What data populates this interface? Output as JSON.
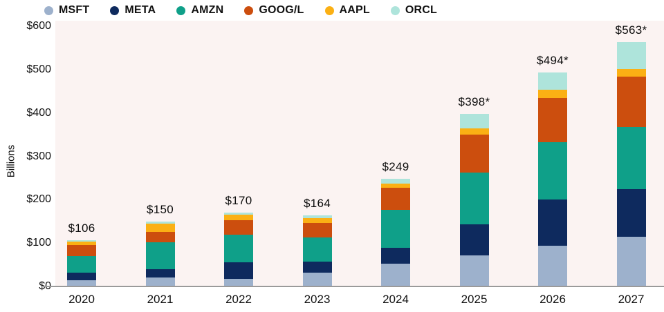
{
  "chart_data": {
    "type": "bar",
    "stacked": true,
    "ylabel": "Billions",
    "ylim": [
      0,
      600
    ],
    "grid": false,
    "legend_position": "top",
    "categories": [
      "2020",
      "2021",
      "2022",
      "2023",
      "2024",
      "2025",
      "2026",
      "2027"
    ],
    "total_labels": [
      "$106",
      "$150",
      "$170",
      "$164",
      "$249",
      "$398*",
      "$494*",
      "$563*"
    ],
    "totals": [
      106,
      150,
      170,
      164,
      249,
      398,
      494,
      563
    ],
    "y_ticks": [
      {
        "label": "$600",
        "value": 600
      },
      {
        "label": "$500",
        "value": 500
      },
      {
        "label": "$400",
        "value": 400
      },
      {
        "label": "$300",
        "value": 300
      },
      {
        "label": "$200",
        "value": 200
      },
      {
        "label": "$100",
        "value": 100
      },
      {
        "label": "$0",
        "value": 0
      }
    ],
    "series": [
      {
        "name": "MSFT",
        "color": "#9db1cc",
        "values": [
          15,
          21,
          18,
          32,
          53,
          72,
          94,
          114
        ]
      },
      {
        "name": "META",
        "color": "#0e2a5e",
        "values": [
          17,
          19,
          37,
          26,
          36,
          72,
          106,
          110
        ]
      },
      {
        "name": "AMZN",
        "color": "#0fa089",
        "values": [
          38,
          62,
          65,
          55,
          87,
          118,
          132,
          143
        ]
      },
      {
        "name": "GOOG/L",
        "color": "#cc4e0e",
        "values": [
          25,
          24,
          33,
          33,
          51,
          88,
          103,
          117
        ]
      },
      {
        "name": "AAPL",
        "color": "#fbb014",
        "values": [
          8,
          19,
          12,
          11,
          10,
          15,
          18,
          18
        ]
      },
      {
        "name": "ORCL",
        "color": "#aee4db",
        "values": [
          3,
          5,
          5,
          7,
          12,
          33,
          41,
          61
        ]
      }
    ]
  },
  "colors": {
    "plot_bg": "#fbf3f2",
    "page_bg": "#ffffff",
    "axis_line": "#9a9a9a",
    "text": "#1a1a1a"
  }
}
